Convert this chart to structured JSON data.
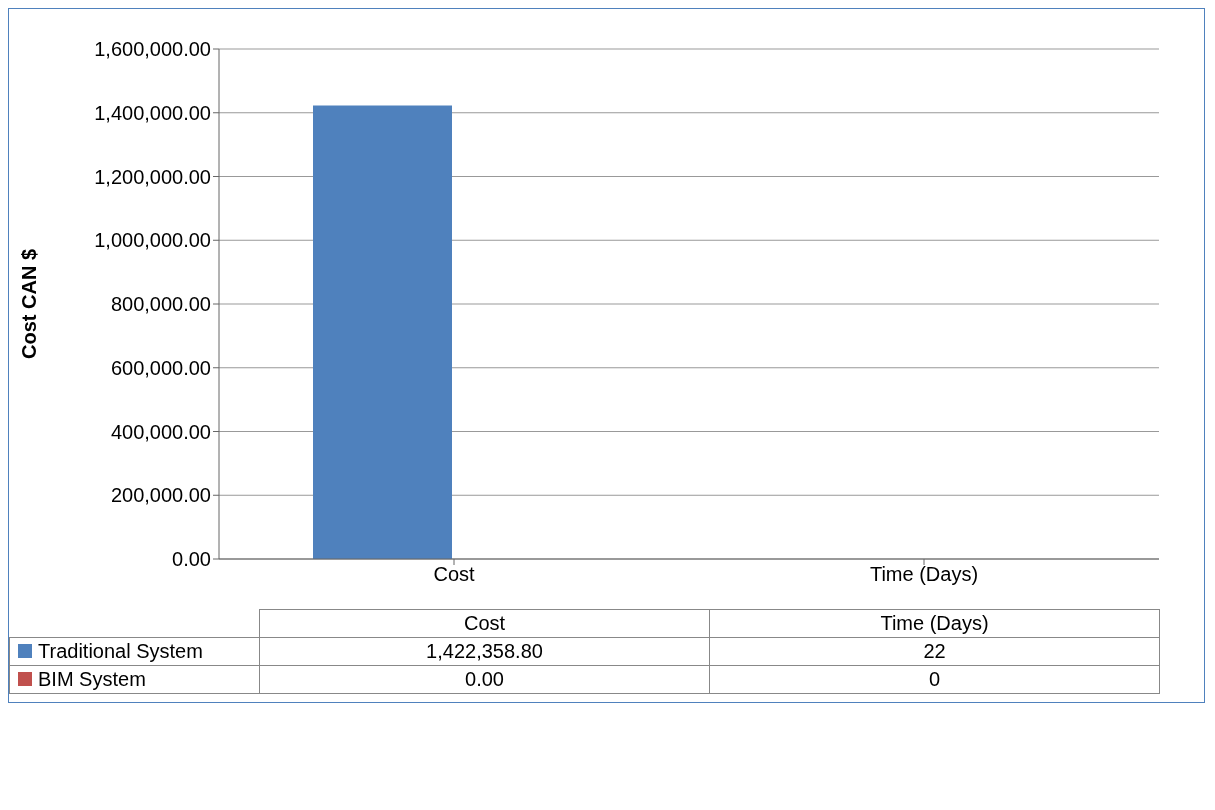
{
  "chart_data": {
    "type": "bar",
    "categories": [
      "Cost",
      "Time (Days)"
    ],
    "series": [
      {
        "name": "Traditional System",
        "color": "#4f81bd",
        "values": [
          1422358.8,
          22
        ],
        "value_labels": [
          "1,422,358.80",
          "22"
        ]
      },
      {
        "name": "BIM System",
        "color": "#c0504d",
        "values": [
          0,
          0
        ],
        "value_labels": [
          "0.00",
          "0"
        ]
      }
    ],
    "ylabel": "Cost CAN $",
    "ylim": [
      0,
      1600000
    ],
    "yticks": [
      {
        "value": 0,
        "label": "0.00"
      },
      {
        "value": 200000,
        "label": "200,000.00"
      },
      {
        "value": 400000,
        "label": "400,000.00"
      },
      {
        "value": 600000,
        "label": "600,000.00"
      },
      {
        "value": 800000,
        "label": "800,000.00"
      },
      {
        "value": 1000000,
        "label": "1,000,000.00"
      },
      {
        "value": 1200000,
        "label": "1,200,000.00"
      },
      {
        "value": 1400000,
        "label": "1,400,000.00"
      },
      {
        "value": 1600000,
        "label": "1,600,000.00"
      }
    ],
    "grid": "y",
    "legend": "bottom",
    "data_labels": true
  }
}
